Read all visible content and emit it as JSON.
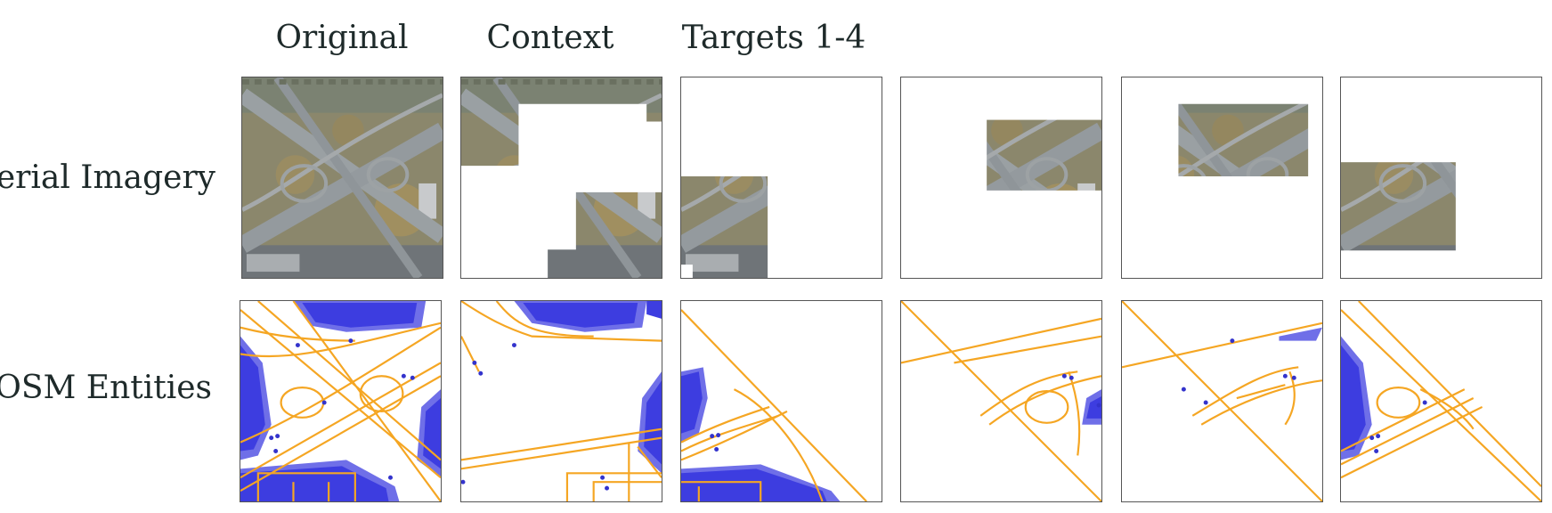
{
  "column_titles": {
    "original": "Original",
    "context": "Context",
    "targets": "Targets 1-4"
  },
  "row_titles": {
    "aerial": "Aerial Imagery",
    "osm": "OSM Entities"
  },
  "colors": {
    "road": "#f5a623",
    "building_fill": "#3d3de0",
    "building_halo": "#6f6fe8",
    "node": "#3333cc",
    "panel_border": "#555555",
    "aerial_grass": "#8a8a6a",
    "aerial_road": "#8e9598"
  }
}
